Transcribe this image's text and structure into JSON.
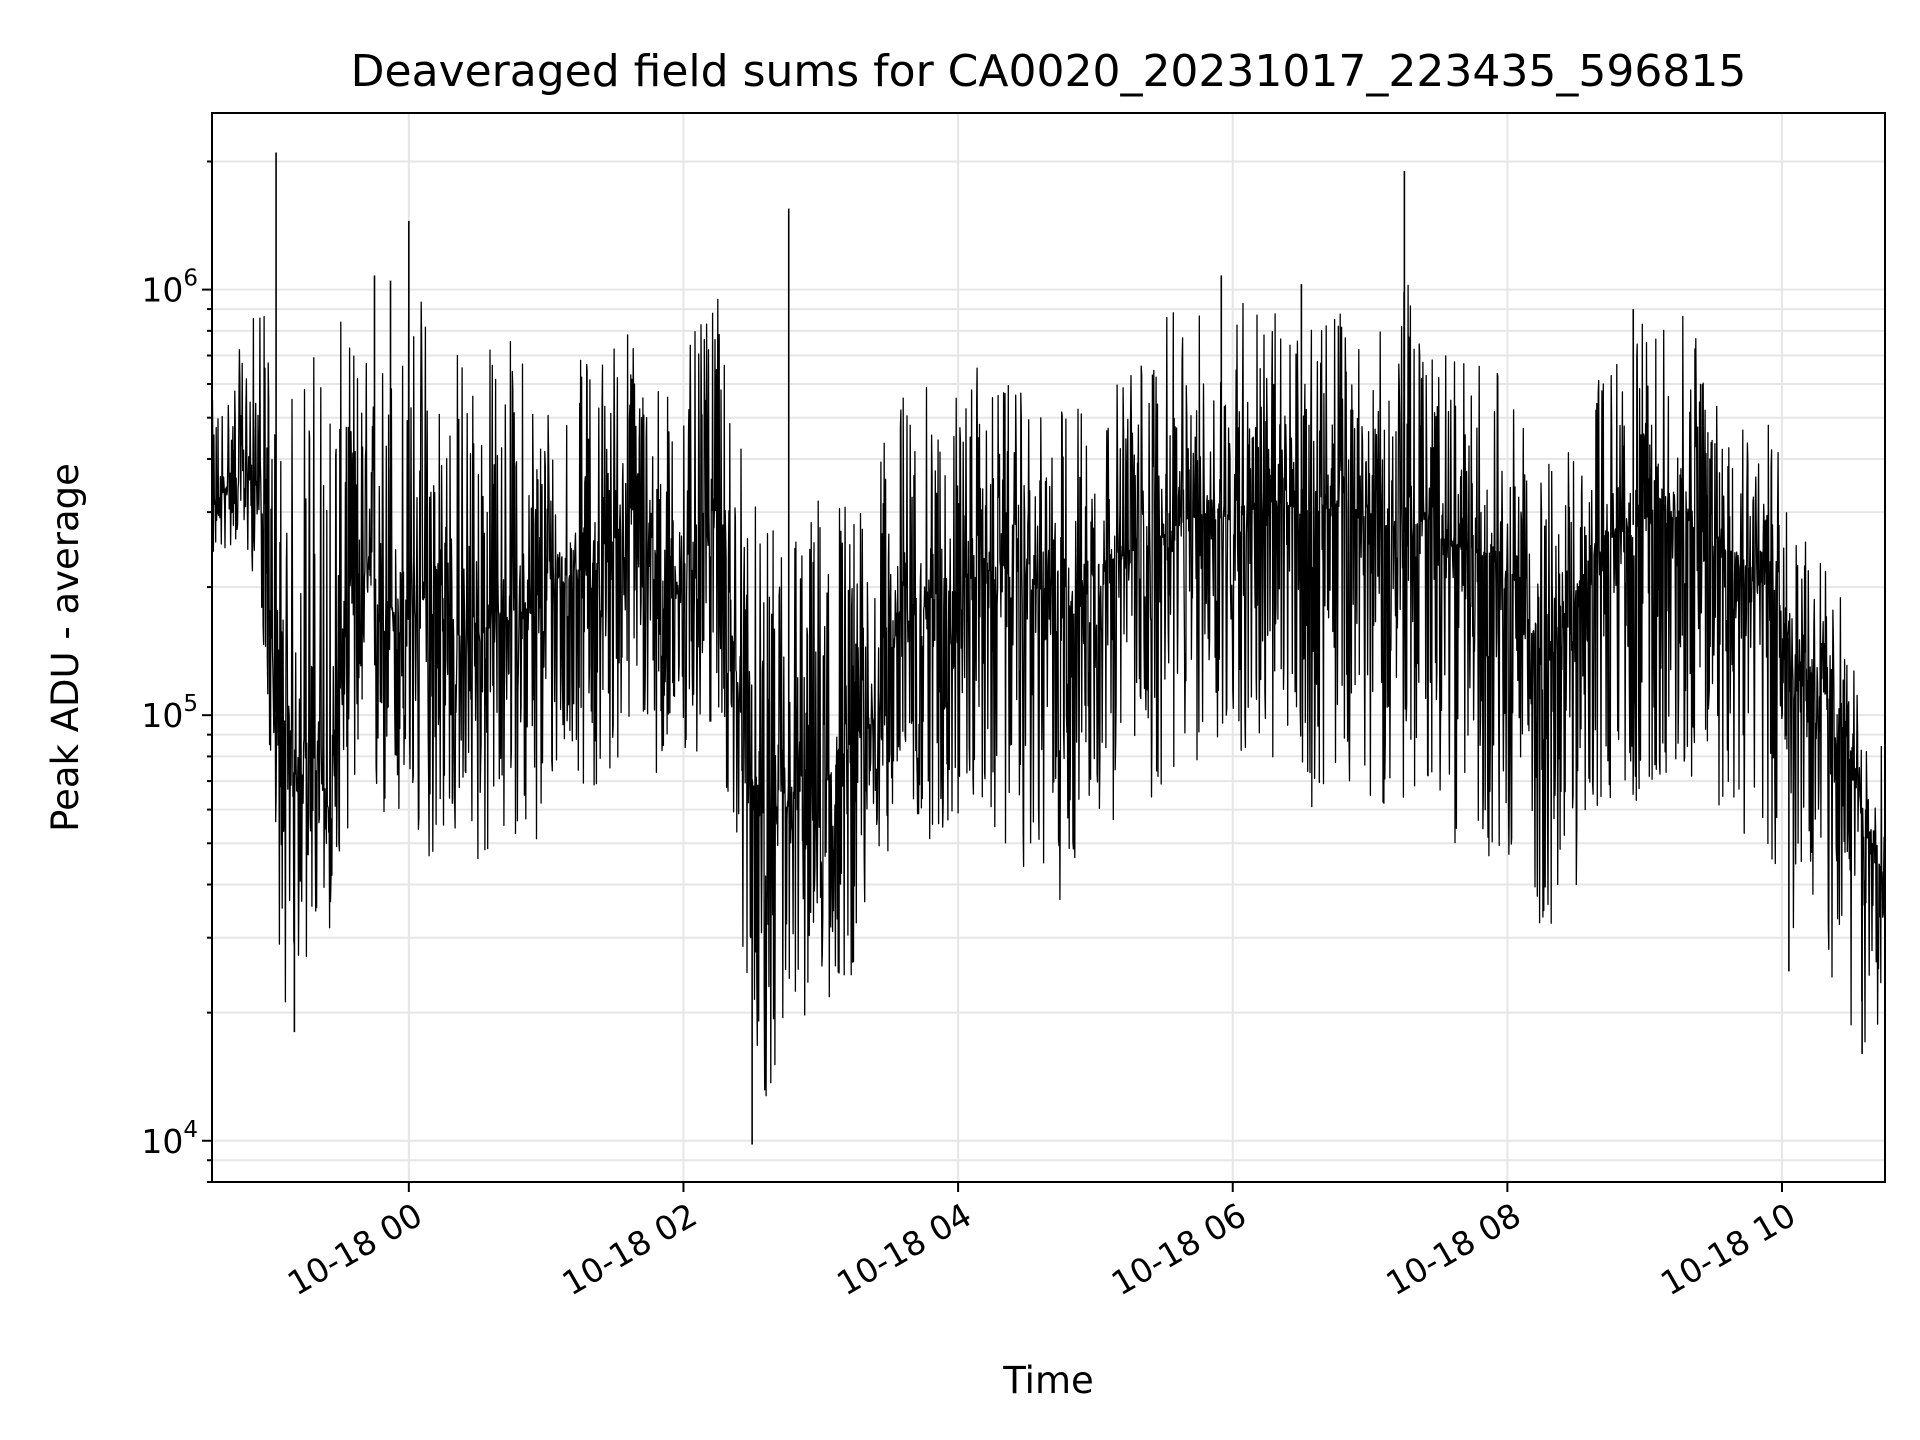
{
  "chart_data": {
    "type": "line",
    "title": "Deaveraged field sums for CA0020_20231017_223435_596815",
    "xlabel": "Time",
    "ylabel": "Peak ADU - average",
    "yscale": "log",
    "ylim": [
      8000,
      2600000
    ],
    "xlim": [
      "2023-10-17 22:34",
      "2023-10-18 10:45"
    ],
    "grid": true,
    "line_color": "#000000",
    "grid_color": "#e6e6e6",
    "x_ticks": [
      {
        "t": "2023-10-18 00:00",
        "label": "10-18 00"
      },
      {
        "t": "2023-10-18 02:00",
        "label": "10-18 02"
      },
      {
        "t": "2023-10-18 04:00",
        "label": "10-18 04"
      },
      {
        "t": "2023-10-18 06:00",
        "label": "10-18 06"
      },
      {
        "t": "2023-10-18 08:00",
        "label": "10-18 08"
      },
      {
        "t": "2023-10-18 10:00",
        "label": "10-18 10"
      }
    ],
    "y_ticks": [
      {
        "value": 10000,
        "base": "10",
        "exp": "4"
      },
      {
        "value": 100000,
        "base": "10",
        "exp": "5"
      },
      {
        "value": 1000000,
        "base": "10",
        "exp": "6"
      }
    ],
    "series": [
      {
        "x": [
          "2023-10-17 22:34",
          "2023-10-17 22:45",
          "2023-10-17 22:55",
          "2023-10-17 23:05",
          "2023-10-17 23:15",
          "2023-10-17 23:25",
          "2023-10-17 23:35",
          "2023-10-17 23:45",
          "2023-10-17 23:55",
          "2023-10-18 00:05",
          "2023-10-18 00:15",
          "2023-10-18 00:25",
          "2023-10-18 00:35",
          "2023-10-18 00:45",
          "2023-10-18 00:55",
          "2023-10-18 01:05",
          "2023-10-18 01:15",
          "2023-10-18 01:25",
          "2023-10-18 01:35",
          "2023-10-18 01:45",
          "2023-10-18 01:55",
          "2023-10-18 02:05",
          "2023-10-18 02:15",
          "2023-10-18 02:25",
          "2023-10-18 02:35",
          "2023-10-18 02:45",
          "2023-10-18 02:55",
          "2023-10-18 03:05",
          "2023-10-18 03:15",
          "2023-10-18 03:25",
          "2023-10-18 03:35",
          "2023-10-18 03:45",
          "2023-10-18 03:55",
          "2023-10-18 04:05",
          "2023-10-18 04:15",
          "2023-10-18 04:25",
          "2023-10-18 04:35",
          "2023-10-18 04:45",
          "2023-10-18 04:55",
          "2023-10-18 05:05",
          "2023-10-18 05:15",
          "2023-10-18 05:25",
          "2023-10-18 05:35",
          "2023-10-18 05:45",
          "2023-10-18 05:55",
          "2023-10-18 06:05",
          "2023-10-18 06:15",
          "2023-10-18 06:25",
          "2023-10-18 06:35",
          "2023-10-18 06:45",
          "2023-10-18 06:55",
          "2023-10-18 07:05",
          "2023-10-18 07:15",
          "2023-10-18 07:25",
          "2023-10-18 07:35",
          "2023-10-18 07:45",
          "2023-10-18 07:55",
          "2023-10-18 08:05",
          "2023-10-18 08:15",
          "2023-10-18 08:25",
          "2023-10-18 08:35",
          "2023-10-18 08:45",
          "2023-10-18 08:55",
          "2023-10-18 09:05",
          "2023-10-18 09:15",
          "2023-10-18 09:25",
          "2023-10-18 09:35",
          "2023-10-18 09:45",
          "2023-10-18 09:55",
          "2023-10-18 10:05",
          "2023-10-18 10:15",
          "2023-10-18 10:25",
          "2023-10-18 10:35",
          "2023-10-18 10:45"
        ],
        "y": [
          300000,
          380000,
          350000,
          60000,
          90000,
          60000,
          220000,
          200000,
          170000,
          190000,
          160000,
          150000,
          160000,
          190000,
          170000,
          210000,
          220000,
          230000,
          300000,
          250000,
          180000,
          270000,
          320000,
          100000,
          50000,
          60000,
          70000,
          70000,
          90000,
          100000,
          180000,
          180000,
          190000,
          210000,
          220000,
          220000,
          200000,
          180000,
          200000,
          230000,
          240000,
          260000,
          270000,
          300000,
          290000,
          310000,
          300000,
          310000,
          300000,
          310000,
          300000,
          280000,
          270000,
          290000,
          250000,
          240000,
          240000,
          190000,
          140000,
          140000,
          230000,
          260000,
          280000,
          300000,
          300000,
          270000,
          250000,
          230000,
          210000,
          140000,
          120000,
          100000,
          60000,
          40000
        ],
        "y_low": [
          230000,
          250000,
          200000,
          20000,
          25000,
          30000,
          60000,
          50000,
          50000,
          40000,
          50000,
          45000,
          40000,
          55000,
          40000,
          70000,
          70000,
          60000,
          90000,
          80000,
          60000,
          70000,
          100000,
          30000,
          12000,
          15000,
          20000,
          20000,
          25000,
          40000,
          60000,
          50000,
          50000,
          60000,
          50000,
          45000,
          40000,
          35000,
          50000,
          55000,
          60000,
          60000,
          70000,
          75000,
          80000,
          80000,
          70000,
          70000,
          60000,
          70000,
          70000,
          60000,
          60000,
          60000,
          50000,
          50000,
          45000,
          40000,
          30000,
          30000,
          50000,
          60000,
          60000,
          70000,
          70000,
          60000,
          60000,
          50000,
          40000,
          30000,
          25000,
          20000,
          15000,
          20000
        ],
        "y_high": [
          550000,
          700000,
          1000000,
          500000,
          800000,
          900000,
          800000,
          700000,
          900000,
          1100000,
          800000,
          800000,
          800000,
          800000,
          700000,
          600000,
          700000,
          800000,
          900000,
          700000,
          600000,
          800000,
          950000,
          500000,
          250000,
          400000,
          300000,
          500000,
          300000,
          400000,
          600000,
          600000,
          550000,
          700000,
          600000,
          600000,
          500000,
          550000,
          600000,
          550000,
          700000,
          800000,
          900000,
          900000,
          800000,
          1100000,
          900000,
          900000,
          800000,
          1000000,
          800000,
          800000,
          1100000,
          800000,
          700000,
          700000,
          700000,
          500000,
          400000,
          400000,
          600000,
          700000,
          800000,
          900000,
          900000,
          800000,
          700000,
          600000,
          500000,
          300000,
          250000,
          200000,
          100000,
          90000
        ]
      }
    ],
    "spikes": [
      {
        "t": "2023-10-17 23:02",
        "y": 2100000
      },
      {
        "t": "2023-10-17 23:45",
        "y": 1080000
      },
      {
        "t": "2023-10-17 23:52",
        "y": 1050000
      },
      {
        "t": "2023-10-18 00:00",
        "y": 1450000
      },
      {
        "t": "2023-10-18 02:46",
        "y": 1550000
      },
      {
        "t": "2023-10-18 02:30",
        "y": 9800
      },
      {
        "t": "2023-10-18 05:55",
        "y": 1080000
      },
      {
        "t": "2023-10-18 06:30",
        "y": 1030000
      },
      {
        "t": "2023-10-18 07:15",
        "y": 1900000
      },
      {
        "t": "2023-10-18 08:55",
        "y": 900000
      },
      {
        "t": "2023-10-17 23:10",
        "y": 18000
      },
      {
        "t": "2023-10-18 10:03",
        "y": 25000
      },
      {
        "t": "2023-10-18 10:35",
        "y": 16000
      }
    ]
  }
}
